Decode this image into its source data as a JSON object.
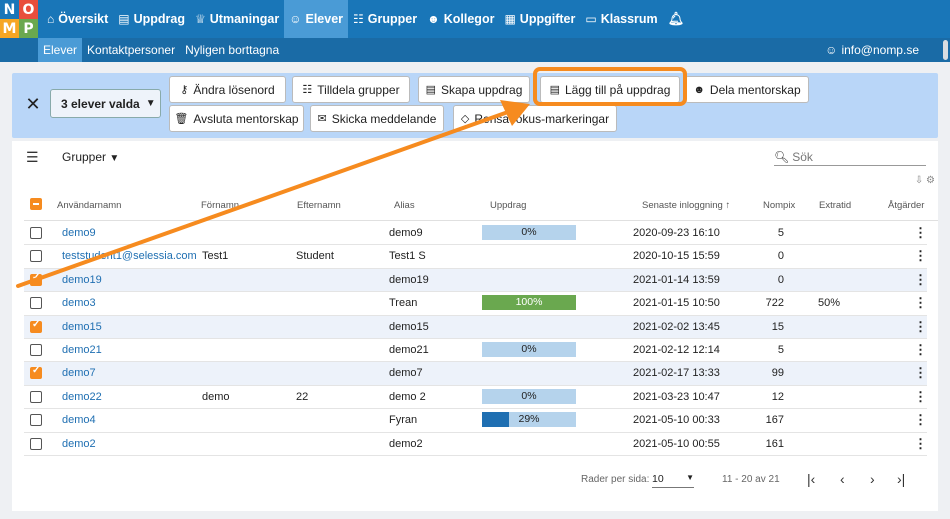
{
  "logo": {
    "letters": [
      "N",
      "O",
      "M",
      "P"
    ],
    "colors": [
      "#1976b8",
      "#e94e3c",
      "#f6a623",
      "#6aa84f"
    ]
  },
  "nav": {
    "items": [
      {
        "icon": "home-icon",
        "glyph": "⌂",
        "label": "Översikt",
        "active": false
      },
      {
        "icon": "book-icon",
        "glyph": "▤",
        "label": "Uppdrag",
        "active": false
      },
      {
        "icon": "trophy-icon",
        "glyph": "♕",
        "label": "Utmaningar",
        "active": false
      },
      {
        "icon": "user-icon",
        "glyph": "☺",
        "label": "Elever",
        "active": true
      },
      {
        "icon": "group-icon",
        "glyph": "☷",
        "label": "Grupper",
        "active": false
      },
      {
        "icon": "colleagues-icon",
        "glyph": "☻",
        "label": "Kollegor",
        "active": false
      },
      {
        "icon": "grid-icon",
        "glyph": "▦",
        "label": "Uppgifter",
        "active": false
      },
      {
        "icon": "classroom-icon",
        "glyph": "▭",
        "label": "Klassrum",
        "active": false
      }
    ],
    "bell_icon": "bell-icon"
  },
  "subnav": {
    "items": [
      {
        "label": "Elever",
        "active": true
      },
      {
        "label": "Kontaktpersoner",
        "active": false
      },
      {
        "label": "Nyligen borttagna",
        "active": false
      }
    ],
    "account": "info@nomp.se"
  },
  "action_bar": {
    "selected_label": "3 elever valda",
    "buttons": [
      {
        "label": "Ändra lösenord",
        "icon": "key-icon",
        "glyph": "⚷"
      },
      {
        "label": "Tilldela grupper",
        "icon": "group-icon",
        "glyph": "☷"
      },
      {
        "label": "Skapa uppdrag",
        "icon": "book-icon",
        "glyph": "▤"
      },
      {
        "label": "Lägg till på uppdrag",
        "icon": "book-icon",
        "glyph": "▤"
      },
      {
        "label": "Dela mentorskap",
        "icon": "people-icon",
        "glyph": "☻"
      },
      {
        "label": "Avsluta mentorskap",
        "icon": "trash-icon",
        "glyph": "🗑"
      },
      {
        "label": "Skicka meddelande",
        "icon": "mail-icon",
        "glyph": "✉"
      },
      {
        "label": "Rensa fokus-markeringar",
        "icon": "eraser-icon",
        "glyph": "◇"
      }
    ]
  },
  "filters": {
    "groups_label": "Grupper",
    "search_placeholder": "Sök"
  },
  "table": {
    "columns": [
      "Användarnamn",
      "Förnamn",
      "Efternamn",
      "Alias",
      "Uppdrag",
      "Senaste inloggning",
      "Nompix",
      "Extratid",
      "Åtgärder"
    ],
    "sort_indicator": "↑",
    "rows": [
      {
        "user": "demo9",
        "first": "",
        "last": "",
        "alias": "demo9",
        "progress": 0,
        "progress_label": "0%",
        "login": "2020-09-23 16:10",
        "nompix": "5",
        "extra": "",
        "checked": false
      },
      {
        "user": "teststudent1@selessia.com",
        "first": "Test1",
        "last": "Student",
        "alias": "Test1 S",
        "progress": null,
        "progress_label": "",
        "login": "2020-10-15 15:59",
        "nompix": "0",
        "extra": "",
        "checked": false
      },
      {
        "user": "demo19",
        "first": "",
        "last": "",
        "alias": "demo19",
        "progress": null,
        "progress_label": "",
        "login": "2021-01-14 13:59",
        "nompix": "0",
        "extra": "",
        "checked": true
      },
      {
        "user": "demo3",
        "first": "",
        "last": "",
        "alias": "Trean",
        "progress": 100,
        "progress_label": "100%",
        "login": "2021-01-15 10:50",
        "nompix": "722",
        "extra": "50%",
        "checked": false
      },
      {
        "user": "demo15",
        "first": "",
        "last": "",
        "alias": "demo15",
        "progress": null,
        "progress_label": "",
        "login": "2021-02-02 13:45",
        "nompix": "15",
        "extra": "",
        "checked": true
      },
      {
        "user": "demo21",
        "first": "",
        "last": "",
        "alias": "demo21",
        "progress": 0,
        "progress_label": "0%",
        "login": "2021-02-12 12:14",
        "nompix": "5",
        "extra": "",
        "checked": false
      },
      {
        "user": "demo7",
        "first": "",
        "last": "",
        "alias": "demo7",
        "progress": null,
        "progress_label": "",
        "login": "2021-02-17 13:33",
        "nompix": "99",
        "extra": "",
        "checked": true
      },
      {
        "user": "demo22",
        "first": "demo",
        "last": "22",
        "alias": "demo 2",
        "progress": 0,
        "progress_label": "0%",
        "login": "2021-03-23 10:47",
        "nompix": "12",
        "extra": "",
        "checked": false
      },
      {
        "user": "demo4",
        "first": "",
        "last": "",
        "alias": "Fyran",
        "progress": 29,
        "progress_label": "29%",
        "login": "2021-05-10 00:33",
        "nompix": "167",
        "extra": "",
        "checked": false
      },
      {
        "user": "demo2",
        "first": "",
        "last": "",
        "alias": "demo2",
        "progress": null,
        "progress_label": "",
        "login": "2021-05-10 00:55",
        "nompix": "161",
        "extra": "",
        "checked": false
      }
    ]
  },
  "pagination": {
    "rows_per_page_label": "Rader per sida:",
    "rows_per_page": "10",
    "range": "11 - 20 av 21"
  },
  "annotation_color": "#f68b1f"
}
